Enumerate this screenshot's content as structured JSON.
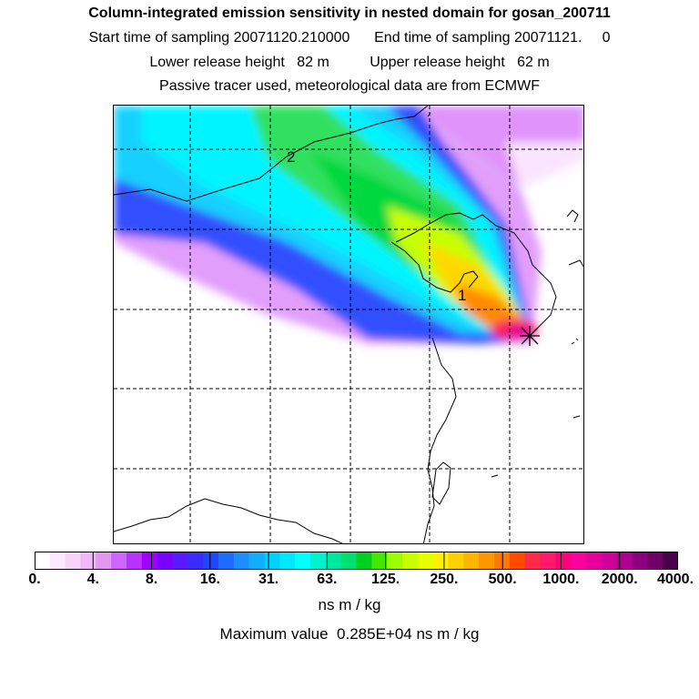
{
  "header": {
    "title": "Column-integrated emission sensitivity in nested domain for gosan_200711",
    "sampling_line": "Start time of sampling 20071120.210000      End time of sampling 20071121.     0",
    "release_line": "Lower release height   82 m          Upper release height   62 m",
    "tracer_line": "Passive tracer used, meteorological data are from ECMWF"
  },
  "map": {
    "cluster_labels": [
      "2",
      "1"
    ],
    "release_marker": "star-marker"
  },
  "colorbar": {
    "tick_labels": [
      "0.",
      "4.",
      "8.",
      "16.",
      "31.",
      "63.",
      "125.",
      "250.",
      "500.",
      "1000.",
      "2000.",
      "4000."
    ],
    "colors": [
      "#ffffff",
      "#fce8ff",
      "#f8d4fb",
      "#f0b8f6",
      "#e296f0",
      "#cc66ff",
      "#b933ff",
      "#a000ff",
      "#7a00ff",
      "#5a1aff",
      "#3a2cff",
      "#2046ff",
      "#1e6bff",
      "#1a8dff",
      "#12adff",
      "#00cfff",
      "#00e8ff",
      "#00ffff",
      "#00f0d0",
      "#00e8a0",
      "#00e070",
      "#00d020",
      "#44e800",
      "#9cff00",
      "#c8ff00",
      "#e6ff00",
      "#ffef00",
      "#ffd000",
      "#ffb400",
      "#ff9600",
      "#ff7800",
      "#ff4a00",
      "#ff2a4a",
      "#ff1a6a",
      "#ff007f",
      "#ff00a0",
      "#e8009c",
      "#d0009a",
      "#b00090",
      "#8c0080",
      "#700068",
      "#4a004a"
    ],
    "units": "ns m / kg"
  },
  "footer": {
    "max_value": "Maximum value  0.285E+04 ns m / kg"
  }
}
